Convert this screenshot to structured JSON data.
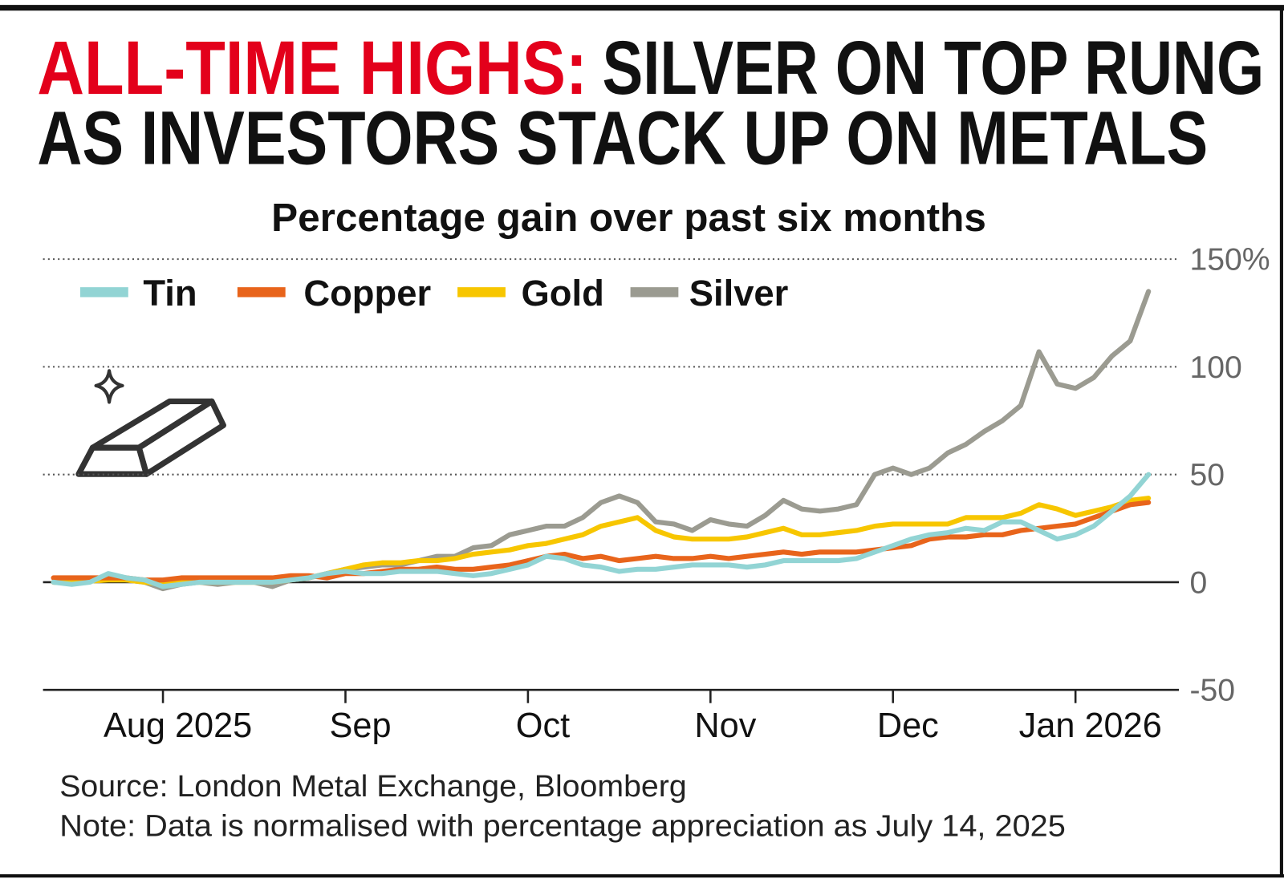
{
  "chart_data": {
    "type": "line",
    "title": {
      "highlight": "ALL-TIME HIGHS:",
      "line1": "SILVER ON TOP RUNG",
      "line2": "AS INVESTORS STACK UP ON METALS"
    },
    "subtitle": "Percentage gain over past six months",
    "source": "Source: London Metal Exchange, Bloomberg",
    "note": "Note: Data is normalised with percentage appreciation as July 14, 2025",
    "categories": [
      null,
      null,
      null,
      null,
      null,
      null,
      "Aug 2025",
      null,
      null,
      null,
      null,
      null,
      null,
      null,
      null,
      null,
      "Sep",
      null,
      null,
      null,
      null,
      null,
      null,
      null,
      null,
      null,
      "Oct",
      null,
      null,
      null,
      null,
      null,
      null,
      null,
      null,
      null,
      "Nov",
      null,
      null,
      null,
      null,
      null,
      null,
      null,
      null,
      null,
      "Dec",
      null,
      null,
      null,
      null,
      null,
      null,
      null,
      null,
      null,
      "Jan 2026",
      null,
      null,
      null,
      null
    ],
    "series": [
      {
        "name": "Tin",
        "color": "#92d4d4",
        "values": [
          0,
          -1,
          0,
          4,
          2,
          1,
          -2,
          -1,
          0,
          0,
          0,
          0,
          0,
          1,
          2,
          4,
          5,
          4,
          4,
          5,
          5,
          5,
          4,
          3,
          4,
          6,
          8,
          12,
          11,
          8,
          7,
          5,
          6,
          6,
          7,
          8,
          8,
          8,
          7,
          8,
          10,
          10,
          10,
          10,
          11,
          14,
          17,
          20,
          22,
          23,
          25,
          24,
          28,
          28,
          24,
          20,
          22,
          26,
          33,
          40,
          50
        ]
      },
      {
        "name": "Copper",
        "color": "#e8641b",
        "values": [
          2,
          2,
          2,
          2,
          2,
          1,
          1,
          2,
          2,
          2,
          2,
          2,
          2,
          3,
          3,
          2,
          4,
          4,
          5,
          6,
          6,
          7,
          6,
          6,
          7,
          8,
          10,
          12,
          13,
          11,
          12,
          10,
          11,
          12,
          11,
          11,
          12,
          11,
          12,
          13,
          14,
          13,
          14,
          14,
          14,
          15,
          16,
          17,
          20,
          21,
          21,
          22,
          22,
          24,
          25,
          26,
          27,
          30,
          33,
          36,
          37
        ]
      },
      {
        "name": "Gold",
        "color": "#f7c600",
        "values": [
          0,
          0,
          0.5,
          1,
          1,
          0,
          -1,
          0,
          0,
          0,
          0,
          0,
          0,
          1,
          2,
          4,
          6,
          8,
          9,
          9,
          10,
          10,
          11,
          13,
          14,
          15,
          17,
          18,
          20,
          22,
          26,
          28,
          30,
          24,
          21,
          20,
          20,
          20,
          21,
          23,
          25,
          22,
          22,
          23,
          24,
          26,
          27,
          27,
          27,
          27,
          30,
          30,
          30,
          32,
          36,
          34,
          31,
          33,
          35,
          38,
          39
        ]
      },
      {
        "name": "Silver",
        "color": "#9b9b91",
        "values": [
          0,
          0,
          0.5,
          2,
          1,
          0,
          -3,
          -1,
          0,
          -1,
          0,
          0,
          -2,
          1,
          2,
          4,
          6,
          7,
          8,
          8,
          10,
          12,
          12,
          16,
          17,
          22,
          24,
          26,
          26,
          30,
          37,
          40,
          37,
          28,
          27,
          24,
          29,
          27,
          26,
          31,
          38,
          34,
          33,
          34,
          36,
          50,
          53,
          50,
          53,
          60,
          64,
          70,
          75,
          82,
          107,
          92,
          90,
          95,
          105,
          112,
          135
        ]
      }
    ],
    "ylim": [
      -50,
      150
    ],
    "yticks": [
      -50,
      0,
      50,
      100,
      {
        "value": 150,
        "label": "150%"
      }
    ],
    "grid": true
  }
}
